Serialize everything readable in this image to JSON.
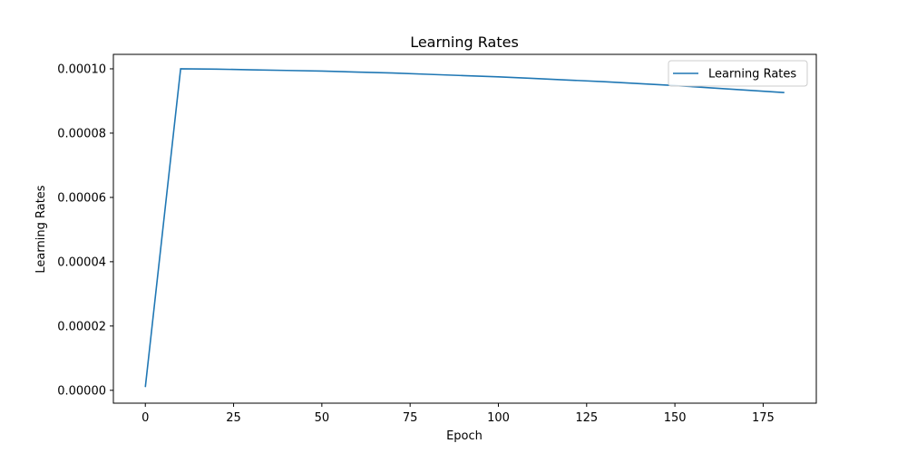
{
  "chart_data": {
    "type": "line",
    "title": "Learning Rates",
    "xlabel": "Epoch",
    "ylabel": "Learning Rates",
    "xlim": [
      -9.05,
      190.05
    ],
    "ylim": [
      -4e-06,
      0.0001045
    ],
    "xticks": [
      0,
      25,
      50,
      75,
      100,
      125,
      150,
      175
    ],
    "yticks": [
      0.0,
      2e-05,
      4e-05,
      6e-05,
      8e-05,
      0.0001
    ],
    "ytick_labels": [
      "0.00000",
      "0.00002",
      "0.00004",
      "0.00006",
      "0.00008",
      "0.00010"
    ],
    "legend": {
      "position": "top-right",
      "entries": [
        "Learning Rates"
      ]
    },
    "grid": false,
    "series": [
      {
        "name": "Learning Rates",
        "color": "#1f77b4",
        "x": [
          0,
          10,
          20,
          30,
          40,
          50,
          60,
          70,
          80,
          90,
          100,
          110,
          120,
          130,
          140,
          150,
          160,
          170,
          181
        ],
        "y": [
          1e-06,
          0.0001,
          9.99e-05,
          9.97e-05,
          9.95e-05,
          9.93e-05,
          9.9e-05,
          9.87e-05,
          9.83e-05,
          9.79e-05,
          9.75e-05,
          9.7e-05,
          9.65e-05,
          9.6e-05,
          9.54e-05,
          9.48e-05,
          9.41e-05,
          9.34e-05,
          9.26e-05
        ]
      }
    ]
  }
}
